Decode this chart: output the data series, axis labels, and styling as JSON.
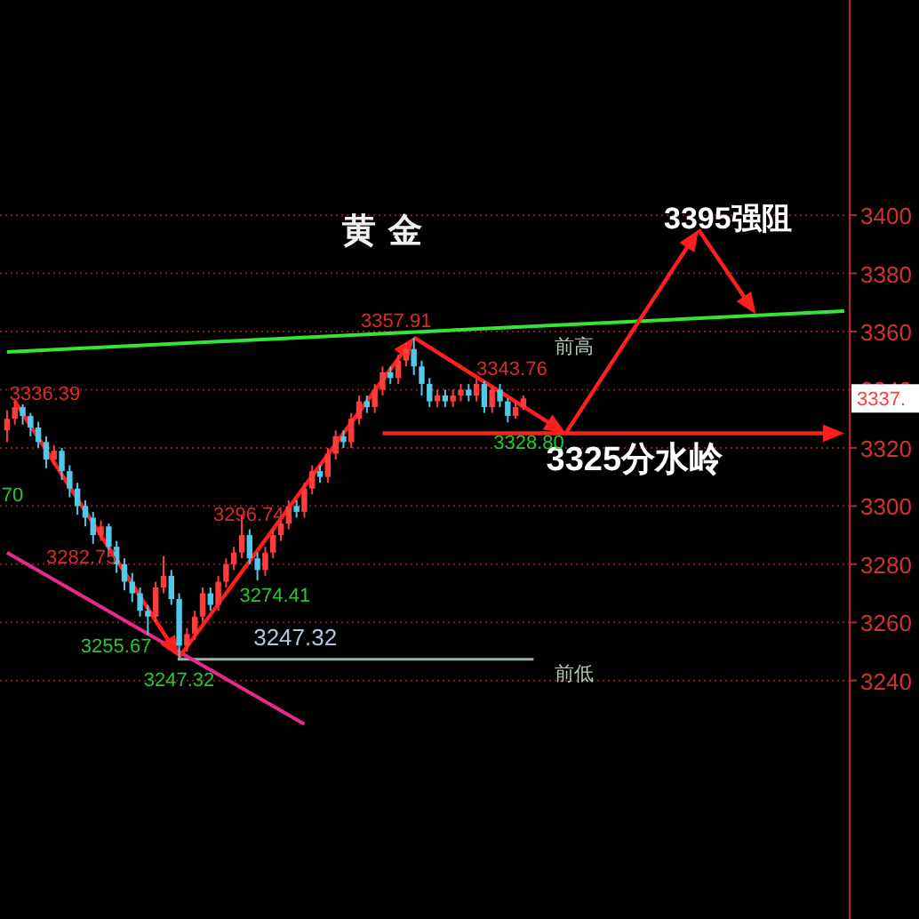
{
  "chart_data": {
    "type": "candlestick",
    "title": "黄 金",
    "categories": [
      null,
      null,
      null,
      null,
      null,
      null,
      null,
      null,
      null,
      null,
      null,
      null,
      null,
      null,
      null,
      null,
      null,
      null,
      null,
      null,
      null,
      null,
      null,
      null,
      null,
      null,
      null,
      null,
      null,
      null,
      null,
      null,
      null,
      null,
      null,
      null,
      null,
      null,
      null,
      null,
      null,
      null,
      null,
      null,
      null,
      null,
      null,
      null,
      null,
      null,
      null,
      null,
      null,
      null,
      null,
      null,
      null,
      null,
      null,
      null,
      null,
      null,
      null,
      null,
      null,
      null,
      null,
      null,
      null,
      null,
      null,
      null,
      null,
      null,
      null,
      null,
      null,
      null,
      null,
      null,
      null,
      null,
      null,
      null,
      null,
      null,
      null,
      null,
      null,
      null,
      null,
      null,
      null,
      null,
      null,
      null,
      null,
      null,
      null,
      null,
      null,
      null,
      null,
      null,
      null,
      null,
      null,
      null
    ],
    "ohlc": [
      [
        3326,
        3333,
        3322,
        3330
      ],
      [
        3330,
        3336.39,
        3328,
        3334
      ],
      [
        3334,
        3335,
        3328,
        3331
      ],
      [
        3331,
        3332,
        3324,
        3327
      ],
      [
        3327,
        3329,
        3320,
        3322
      ],
      [
        3322,
        3324,
        3313,
        3316
      ],
      [
        3316,
        3321,
        3314,
        3319
      ],
      [
        3319,
        3320,
        3309,
        3312
      ],
      [
        3312,
        3314,
        3303,
        3306
      ],
      [
        3306,
        3308,
        3297,
        3300
      ],
      [
        3300,
        3302,
        3293,
        3296
      ],
      [
        3296,
        3298,
        3287,
        3290
      ],
      [
        3290,
        3295,
        3288,
        3293
      ],
      [
        3293,
        3294,
        3283,
        3286
      ],
      [
        3286,
        3288,
        3277,
        3280
      ],
      [
        3280,
        3282,
        3271,
        3274
      ],
      [
        3274,
        3277,
        3267,
        3270
      ],
      [
        3270,
        3272,
        3262,
        3264
      ],
      [
        3264,
        3266,
        3255.67,
        3262
      ],
      [
        3262,
        3274,
        3260,
        3272
      ],
      [
        3272,
        3282.75,
        3270,
        3276
      ],
      [
        3276,
        3278,
        3266,
        3268
      ],
      [
        3268,
        3270,
        3247.32,
        3252
      ],
      [
        3252,
        3258,
        3250,
        3256
      ],
      [
        3256,
        3264,
        3254,
        3262
      ],
      [
        3262,
        3272,
        3260,
        3270
      ],
      [
        3270,
        3272,
        3264,
        3266
      ],
      [
        3266,
        3276,
        3264,
        3274
      ],
      [
        3274,
        3282,
        3272,
        3280
      ],
      [
        3280,
        3286,
        3278,
        3284
      ],
      [
        3284,
        3296.74,
        3282,
        3290
      ],
      [
        3290,
        3292,
        3280,
        3282
      ],
      [
        3282,
        3284,
        3274.41,
        3278
      ],
      [
        3278,
        3286,
        3276,
        3284
      ],
      [
        3284,
        3292,
        3282,
        3290
      ],
      [
        3290,
        3296,
        3288,
        3294
      ],
      [
        3294,
        3302,
        3292,
        3300
      ],
      [
        3300,
        3302,
        3296,
        3298
      ],
      [
        3298,
        3308,
        3296,
        3306
      ],
      [
        3306,
        3314,
        3304,
        3312
      ],
      [
        3312,
        3314,
        3308,
        3310
      ],
      [
        3310,
        3320,
        3308,
        3318
      ],
      [
        3318,
        3326,
        3316,
        3324
      ],
      [
        3324,
        3326,
        3320,
        3322
      ],
      [
        3322,
        3332,
        3320,
        3330
      ],
      [
        3330,
        3338,
        3328,
        3336
      ],
      [
        3336,
        3338,
        3332,
        3334
      ],
      [
        3334,
        3342,
        3332,
        3340
      ],
      [
        3340,
        3348,
        3338,
        3346
      ],
      [
        3346,
        3348,
        3342,
        3344
      ],
      [
        3344,
        3352,
        3342,
        3350
      ],
      [
        3350,
        3356,
        3348,
        3354
      ],
      [
        3354,
        3357.91,
        3345,
        3348
      ],
      [
        3348,
        3350,
        3338,
        3342
      ],
      [
        3342,
        3344,
        3334,
        3336
      ],
      [
        3336,
        3340,
        3334,
        3338
      ],
      [
        3338,
        3340,
        3334,
        3336
      ],
      [
        3336,
        3340,
        3334,
        3338
      ],
      [
        3338,
        3342,
        3336,
        3340
      ],
      [
        3340,
        3342,
        3336,
        3338
      ],
      [
        3338,
        3343.76,
        3336,
        3342
      ],
      [
        3342,
        3343,
        3332,
        3334
      ],
      [
        3334,
        3341,
        3332,
        3340
      ],
      [
        3340,
        3342,
        3334,
        3336
      ],
      [
        3336,
        3337,
        3328.8,
        3331
      ],
      [
        3331,
        3336,
        3330,
        3334
      ],
      [
        3334,
        3338,
        3333,
        3337
      ],
      null,
      null,
      null,
      null,
      null,
      null,
      null,
      null,
      null,
      null,
      null,
      null,
      null,
      null,
      null,
      null,
      null,
      null,
      null,
      null,
      null,
      null,
      null,
      null,
      null,
      null,
      null,
      null,
      null,
      null,
      null,
      null,
      null,
      null,
      null,
      null,
      null,
      null,
      null,
      null,
      null
    ],
    "series": [
      {
        "type": "line",
        "color": "#33e633",
        "values": [
          3353,
          null,
          null,
          null,
          null,
          null,
          null,
          null,
          null,
          null,
          null,
          null,
          null,
          null,
          null,
          null,
          null,
          null,
          null,
          null,
          null,
          null,
          null,
          null,
          null,
          null,
          null,
          null,
          null,
          null,
          null,
          null,
          null,
          null,
          null,
          null,
          null,
          null,
          null,
          null,
          null,
          null,
          null,
          null,
          null,
          null,
          null,
          null,
          null,
          null,
          null,
          null,
          null,
          null,
          null,
          null,
          null,
          null,
          null,
          null,
          null,
          null,
          null,
          null,
          null,
          null,
          null,
          null,
          null,
          null,
          null,
          null,
          null,
          null,
          null,
          null,
          null,
          null,
          null,
          null,
          null,
          null,
          null,
          null,
          null,
          null,
          null,
          null,
          null,
          null,
          null,
          null,
          null,
          null,
          null,
          null,
          null,
          null,
          null,
          null,
          null,
          null,
          null,
          null,
          null,
          null,
          null,
          3367
        ]
      },
      {
        "type": "line",
        "color": "#e8288c",
        "values": [
          3284,
          null,
          null,
          null,
          null,
          null,
          null,
          null,
          null,
          null,
          null,
          null,
          null,
          null,
          null,
          null,
          null,
          null,
          null,
          null,
          null,
          null,
          null,
          null,
          null,
          null,
          null,
          null,
          null,
          null,
          null,
          null,
          null,
          null,
          null,
          null,
          null,
          null,
          3225,
          null,
          null,
          null,
          null,
          null,
          null,
          null,
          null,
          null,
          null,
          null,
          null,
          null,
          null,
          null,
          null,
          null,
          null,
          null,
          null,
          null,
          null,
          null,
          null,
          null,
          null,
          null,
          null,
          null,
          null,
          null,
          null,
          null,
          null,
          null,
          null,
          null,
          null,
          null,
          null,
          null,
          null,
          null,
          null,
          null,
          null,
          null,
          null,
          null,
          null,
          null,
          null,
          null,
          null,
          null,
          null,
          null,
          null,
          null,
          null,
          null,
          null,
          null,
          null,
          null,
          null,
          null,
          null,
          null
        ]
      }
    ],
    "ref_lines": [
      {
        "axis": "y",
        "value": 3247.32,
        "label": "3247.32",
        "color": "#9ab4a4"
      }
    ],
    "annotations": [
      "3395强阻",
      "3325分水岭",
      "前高",
      "前低",
      {
        "text": "3357.91",
        "y": 3357.91
      },
      "3343.76",
      "3328.80",
      "3336.39",
      ".70",
      "3296.74",
      "3282.75",
      "3274.41",
      "3255.67",
      {
        "text": "3247.32",
        "y": 3247.32
      },
      "3337."
    ],
    "ylim": [
      3158,
      3474
    ],
    "yticks": [
      3240,
      3260,
      3280,
      3300,
      3320,
      3340,
      3360,
      3380,
      3400
    ],
    "tick_labels": "y",
    "grid": "y"
  }
}
